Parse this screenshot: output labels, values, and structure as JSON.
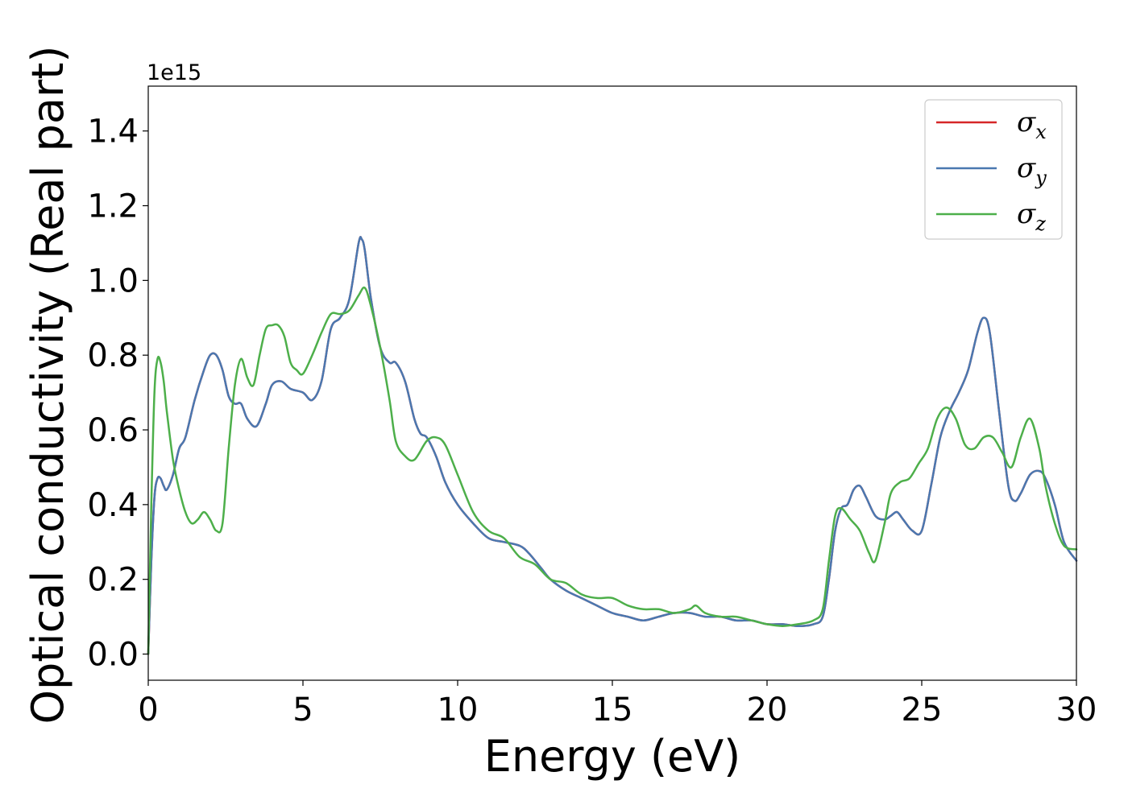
{
  "chart_data": {
    "type": "line",
    "title": "",
    "xlabel": "Energy (eV)",
    "ylabel": "Optical conductivity (Real part)",
    "y_offset_label": "1e15",
    "xlim": [
      0,
      30
    ],
    "ylim": [
      -0.07,
      1.52
    ],
    "xticks": [
      0,
      5,
      10,
      15,
      20,
      25,
      30
    ],
    "yticks": [
      0.0,
      0.2,
      0.4,
      0.6,
      0.8,
      1.0,
      1.2,
      1.4
    ],
    "xtick_labels": [
      "0",
      "5",
      "10",
      "15",
      "20",
      "25",
      "30"
    ],
    "ytick_labels": [
      "0.0",
      "0.2",
      "0.4",
      "0.6",
      "0.8",
      "1.0",
      "1.2",
      "1.4"
    ],
    "grid": false,
    "legend_position": "top-right",
    "series": [
      {
        "name": "σ",
        "sub": "x",
        "color": "#d62728",
        "x": [
          0,
          0.1,
          0.2,
          0.3,
          0.4,
          0.5,
          0.6,
          0.8,
          1.0,
          1.2,
          1.5,
          1.8,
          2.0,
          2.2,
          2.4,
          2.6,
          2.8,
          3.0,
          3.2,
          3.5,
          3.8,
          4.0,
          4.3,
          4.6,
          5.0,
          5.3,
          5.6,
          5.9,
          6.2,
          6.5,
          6.8,
          6.9,
          7.0,
          7.2,
          7.5,
          7.8,
          8.0,
          8.3,
          8.6,
          8.8,
          9.0,
          9.3,
          9.6,
          10.0,
          10.5,
          11.0,
          11.5,
          12.0,
          12.3,
          12.7,
          13.0,
          13.5,
          14.0,
          14.5,
          15.0,
          15.5,
          16.0,
          16.5,
          17.0,
          17.5,
          18.0,
          18.5,
          19.0,
          19.5,
          20.0,
          20.5,
          21.0,
          21.5,
          21.8,
          22.0,
          22.2,
          22.4,
          22.6,
          22.8,
          23.0,
          23.2,
          23.5,
          23.8,
          24.0,
          24.2,
          24.4,
          24.7,
          25.0,
          25.3,
          25.6,
          25.9,
          26.2,
          26.5,
          26.8,
          27.0,
          27.2,
          27.5,
          27.8,
          28.0,
          28.2,
          28.5,
          28.8,
          29.0,
          29.3,
          29.6,
          30.0
        ],
        "values": [
          0.0,
          0.25,
          0.42,
          0.47,
          0.47,
          0.45,
          0.44,
          0.48,
          0.55,
          0.58,
          0.68,
          0.76,
          0.8,
          0.8,
          0.76,
          0.69,
          0.67,
          0.67,
          0.63,
          0.61,
          0.67,
          0.72,
          0.73,
          0.71,
          0.7,
          0.68,
          0.73,
          0.87,
          0.9,
          0.95,
          1.1,
          1.11,
          1.08,
          0.95,
          0.82,
          0.78,
          0.78,
          0.73,
          0.63,
          0.59,
          0.58,
          0.53,
          0.46,
          0.4,
          0.35,
          0.31,
          0.3,
          0.29,
          0.27,
          0.23,
          0.2,
          0.17,
          0.15,
          0.13,
          0.11,
          0.1,
          0.09,
          0.1,
          0.11,
          0.11,
          0.1,
          0.1,
          0.09,
          0.09,
          0.08,
          0.08,
          0.075,
          0.08,
          0.1,
          0.2,
          0.33,
          0.39,
          0.4,
          0.44,
          0.45,
          0.42,
          0.37,
          0.36,
          0.37,
          0.38,
          0.36,
          0.33,
          0.33,
          0.45,
          0.58,
          0.65,
          0.7,
          0.76,
          0.86,
          0.9,
          0.86,
          0.65,
          0.45,
          0.41,
          0.43,
          0.48,
          0.49,
          0.47,
          0.4,
          0.3,
          0.25
        ]
      },
      {
        "name": "σ",
        "sub": "y",
        "color": "#4a78b0",
        "x": [
          0,
          0.1,
          0.2,
          0.3,
          0.4,
          0.5,
          0.6,
          0.8,
          1.0,
          1.2,
          1.5,
          1.8,
          2.0,
          2.2,
          2.4,
          2.6,
          2.8,
          3.0,
          3.2,
          3.5,
          3.8,
          4.0,
          4.3,
          4.6,
          5.0,
          5.3,
          5.6,
          5.9,
          6.2,
          6.5,
          6.8,
          6.9,
          7.0,
          7.2,
          7.5,
          7.8,
          8.0,
          8.3,
          8.6,
          8.8,
          9.0,
          9.3,
          9.6,
          10.0,
          10.5,
          11.0,
          11.5,
          12.0,
          12.3,
          12.7,
          13.0,
          13.5,
          14.0,
          14.5,
          15.0,
          15.5,
          16.0,
          16.5,
          17.0,
          17.5,
          18.0,
          18.5,
          19.0,
          19.5,
          20.0,
          20.5,
          21.0,
          21.5,
          21.8,
          22.0,
          22.2,
          22.4,
          22.6,
          22.8,
          23.0,
          23.2,
          23.5,
          23.8,
          24.0,
          24.2,
          24.4,
          24.7,
          25.0,
          25.3,
          25.6,
          25.9,
          26.2,
          26.5,
          26.8,
          27.0,
          27.2,
          27.5,
          27.8,
          28.0,
          28.2,
          28.5,
          28.8,
          29.0,
          29.3,
          29.6,
          30.0
        ],
        "values": [
          0.0,
          0.25,
          0.42,
          0.47,
          0.47,
          0.45,
          0.44,
          0.48,
          0.55,
          0.58,
          0.68,
          0.76,
          0.8,
          0.8,
          0.76,
          0.69,
          0.67,
          0.67,
          0.63,
          0.61,
          0.67,
          0.72,
          0.73,
          0.71,
          0.7,
          0.68,
          0.73,
          0.87,
          0.9,
          0.95,
          1.1,
          1.11,
          1.08,
          0.95,
          0.82,
          0.78,
          0.78,
          0.73,
          0.63,
          0.59,
          0.58,
          0.53,
          0.46,
          0.4,
          0.35,
          0.31,
          0.3,
          0.29,
          0.27,
          0.23,
          0.2,
          0.17,
          0.15,
          0.13,
          0.11,
          0.1,
          0.09,
          0.1,
          0.11,
          0.11,
          0.1,
          0.1,
          0.09,
          0.09,
          0.08,
          0.08,
          0.075,
          0.08,
          0.1,
          0.2,
          0.33,
          0.39,
          0.4,
          0.44,
          0.45,
          0.42,
          0.37,
          0.36,
          0.37,
          0.38,
          0.36,
          0.33,
          0.33,
          0.45,
          0.58,
          0.65,
          0.7,
          0.76,
          0.86,
          0.9,
          0.86,
          0.65,
          0.45,
          0.41,
          0.43,
          0.48,
          0.49,
          0.47,
          0.4,
          0.3,
          0.25
        ]
      },
      {
        "name": "σ",
        "sub": "z",
        "color": "#4daf4a",
        "x": [
          0,
          0.1,
          0.2,
          0.3,
          0.4,
          0.5,
          0.6,
          0.8,
          1.0,
          1.2,
          1.4,
          1.6,
          1.8,
          2.0,
          2.2,
          2.4,
          2.6,
          2.8,
          3.0,
          3.2,
          3.4,
          3.6,
          3.8,
          4.0,
          4.2,
          4.4,
          4.6,
          4.8,
          5.0,
          5.3,
          5.6,
          5.9,
          6.2,
          6.5,
          6.8,
          7.0,
          7.2,
          7.5,
          7.8,
          8.0,
          8.3,
          8.6,
          9.0,
          9.3,
          9.6,
          10.0,
          10.5,
          11.0,
          11.5,
          12.0,
          12.5,
          13.0,
          13.5,
          14.0,
          14.5,
          15.0,
          15.5,
          16.0,
          16.5,
          17.0,
          17.5,
          17.7,
          18.0,
          18.5,
          19.0,
          19.5,
          20.0,
          20.5,
          21.0,
          21.5,
          21.8,
          22.0,
          22.2,
          22.4,
          22.7,
          23.0,
          23.3,
          23.5,
          23.8,
          24.0,
          24.3,
          24.6,
          24.9,
          25.2,
          25.5,
          25.8,
          26.1,
          26.4,
          26.7,
          27.0,
          27.3,
          27.6,
          27.9,
          28.2,
          28.5,
          28.8,
          29.0,
          29.3,
          29.6,
          30.0
        ],
        "values": [
          0.0,
          0.4,
          0.7,
          0.79,
          0.78,
          0.73,
          0.65,
          0.52,
          0.44,
          0.38,
          0.35,
          0.36,
          0.38,
          0.36,
          0.33,
          0.35,
          0.55,
          0.72,
          0.79,
          0.74,
          0.72,
          0.8,
          0.87,
          0.88,
          0.88,
          0.85,
          0.78,
          0.76,
          0.75,
          0.8,
          0.86,
          0.91,
          0.91,
          0.92,
          0.96,
          0.98,
          0.93,
          0.82,
          0.68,
          0.57,
          0.53,
          0.52,
          0.57,
          0.58,
          0.56,
          0.48,
          0.38,
          0.33,
          0.31,
          0.26,
          0.24,
          0.2,
          0.19,
          0.16,
          0.15,
          0.15,
          0.13,
          0.12,
          0.12,
          0.11,
          0.12,
          0.13,
          0.11,
          0.1,
          0.1,
          0.09,
          0.08,
          0.075,
          0.08,
          0.09,
          0.12,
          0.25,
          0.37,
          0.39,
          0.36,
          0.33,
          0.27,
          0.25,
          0.35,
          0.43,
          0.46,
          0.47,
          0.51,
          0.55,
          0.63,
          0.66,
          0.63,
          0.56,
          0.55,
          0.58,
          0.58,
          0.54,
          0.5,
          0.58,
          0.63,
          0.55,
          0.45,
          0.35,
          0.29,
          0.28
        ]
      }
    ]
  }
}
